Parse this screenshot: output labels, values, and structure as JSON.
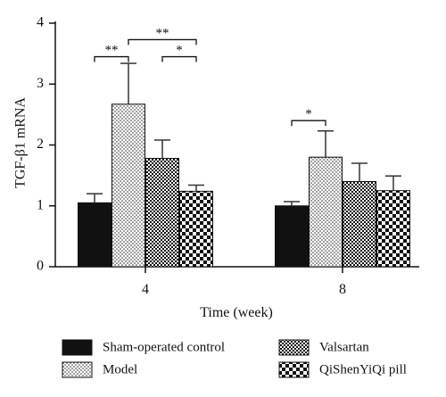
{
  "chart_data": {
    "type": "bar",
    "ylabel": "TGF-β1 mRNA",
    "xlabel": "Time (week)",
    "categories": [
      "4",
      "8"
    ],
    "ylim": [
      0,
      4
    ],
    "yticks": [
      0,
      1,
      2,
      3,
      4
    ],
    "series": [
      {
        "name": "Sham-operated control",
        "values": [
          1.05,
          1.0
        ],
        "errors": [
          0.15,
          0.07
        ],
        "pattern": "solid-black"
      },
      {
        "name": "Model",
        "values": [
          2.67,
          1.8
        ],
        "errors": [
          0.67,
          0.43
        ],
        "pattern": "fine-dots"
      },
      {
        "name": "Valsartan",
        "values": [
          1.78,
          1.4
        ],
        "errors": [
          0.3,
          0.3
        ],
        "pattern": "dense-checker"
      },
      {
        "name": "QiShenYiQi pill",
        "values": [
          1.24,
          1.25
        ],
        "errors": [
          0.1,
          0.24
        ],
        "pattern": "large-checker"
      }
    ],
    "significance": [
      {
        "category": "4",
        "from_series": 0,
        "to_series": 1,
        "label": "**",
        "y": 3.45
      },
      {
        "category": "4",
        "from_series": 1,
        "to_series": 3,
        "label": "**",
        "y": 3.73
      },
      {
        "category": "4",
        "from_series": 2,
        "to_series": 3,
        "label": "*",
        "y": 3.45
      },
      {
        "category": "8",
        "from_series": 0,
        "to_series": 1,
        "label": "*",
        "y": 2.4
      }
    ],
    "legend_position": "bottom",
    "grid": false
  },
  "colors": {
    "ink": "#111111",
    "background": "#ffffff"
  }
}
